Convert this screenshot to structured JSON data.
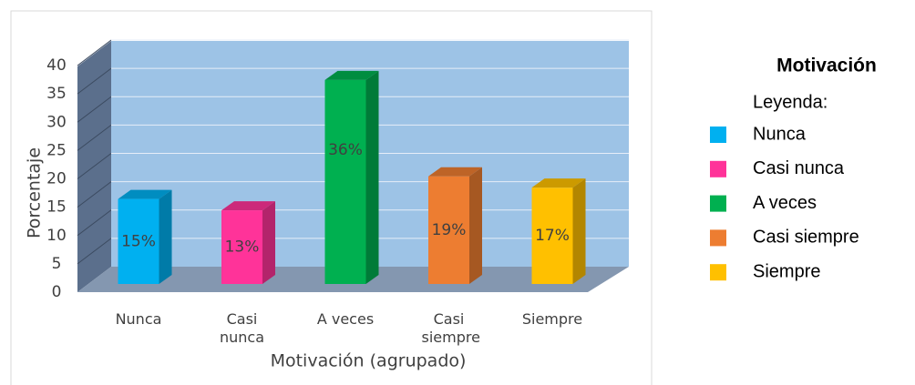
{
  "chart_data": {
    "type": "bar3d",
    "title": "Motivación",
    "legend_title": "Leyenda:",
    "x_label": "Motivación (agrupado)",
    "y_label": "Porcentaje",
    "categories": [
      "Nunca",
      "Casi nunca",
      "A veces",
      "Casi siempre",
      "Siempre"
    ],
    "values": [
      15,
      13,
      36,
      19,
      17
    ],
    "value_labels": [
      "15%",
      "13%",
      "36%",
      "19%",
      "17%"
    ],
    "colors": [
      "#00b0f0",
      "#ff3399",
      "#00b050",
      "#ed7d31",
      "#ffc000"
    ],
    "ylim": [
      0,
      40
    ],
    "yticks": [
      0,
      5,
      10,
      15,
      20,
      25,
      30,
      35,
      40
    ],
    "grid": true,
    "legend": "right"
  }
}
